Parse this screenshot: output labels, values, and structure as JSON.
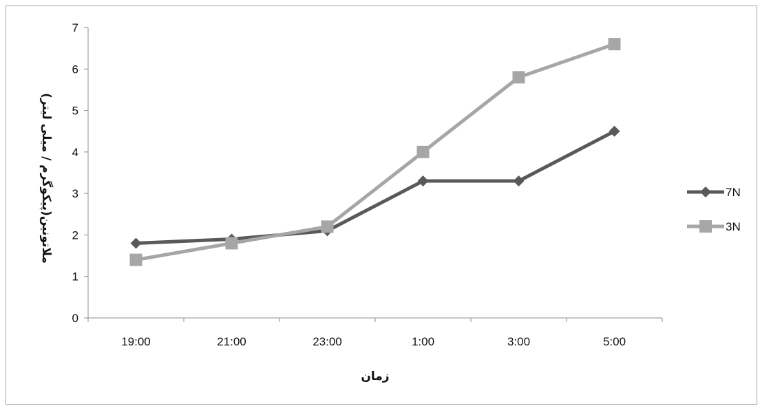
{
  "chart_data": {
    "type": "line",
    "categories": [
      "19:00",
      "21:00",
      "23:00",
      "1:00",
      "3:00",
      "5:00"
    ],
    "series": [
      {
        "name": "7N",
        "values": [
          1.8,
          1.9,
          2.1,
          3.3,
          3.3,
          4.5
        ],
        "color": "#595959",
        "marker": "diamond"
      },
      {
        "name": "3N",
        "values": [
          1.4,
          1.8,
          2.2,
          4.0,
          5.8,
          6.6
        ],
        "color": "#a6a6a6",
        "marker": "square"
      }
    ],
    "xlabel": "زمان",
    "ylabel": "ملاتونین(پیکوگرم / میلی لیتر)",
    "ylim": [
      0,
      7
    ],
    "yticks": [
      0,
      1,
      2,
      3,
      4,
      5,
      6,
      7
    ],
    "grid": false,
    "legend_position": "right"
  }
}
